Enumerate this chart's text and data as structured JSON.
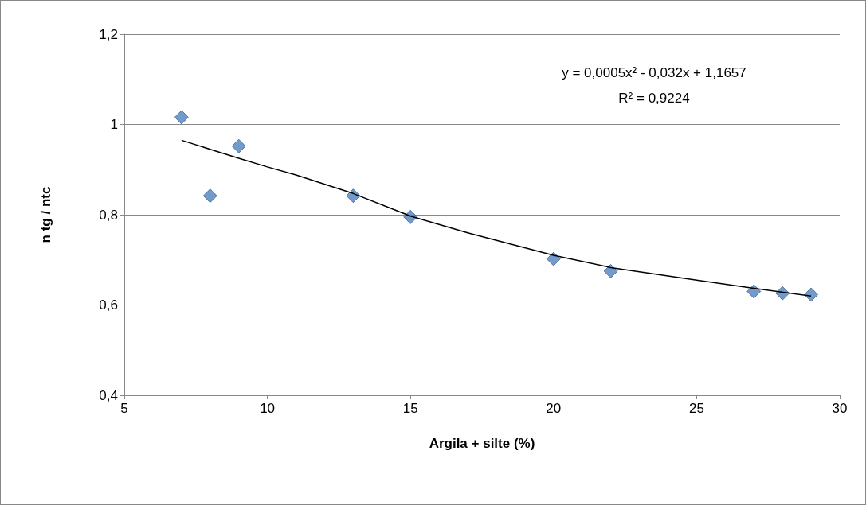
{
  "chart_data": {
    "type": "scatter",
    "xlabel": "Argila + silte (%)",
    "ylabel": "n tg / ntc",
    "annotations": [
      "y = 0,0005x² - 0,032x + 1,1657",
      "R² = 0,9224"
    ],
    "series": [
      {
        "color": "#4f81bd",
        "marker": "diamond",
        "x": [
          7,
          8,
          9,
          13,
          15,
          20,
          22,
          27,
          28,
          29
        ],
        "values": [
          1.016,
          0.842,
          0.952,
          0.842,
          0.795,
          0.702,
          0.675,
          0.63,
          0.626,
          0.623
        ]
      },
      {
        "type": "line",
        "color": "#000000",
        "marker": "none",
        "x": [
          7,
          8,
          9,
          10,
          11,
          13,
          15,
          17,
          20,
          22,
          25,
          27,
          29
        ],
        "values": [
          0.965,
          0.945,
          0.925,
          0.906,
          0.888,
          0.847,
          0.797,
          0.76,
          0.71,
          0.683,
          0.655,
          0.637,
          0.62
        ]
      }
    ],
    "xlim": [
      5,
      30
    ],
    "xticks": [
      5,
      10,
      15,
      20,
      25,
      30
    ],
    "ylim": [
      0.4,
      1.2
    ],
    "yticks": [
      {
        "value": 0.4,
        "label": "0,4"
      },
      {
        "value": 0.6,
        "label": "0,6"
      },
      {
        "value": 0.8,
        "label": "0,8"
      },
      1,
      {
        "value": 1.2,
        "label": "1,2"
      }
    ],
    "grid": "y"
  }
}
